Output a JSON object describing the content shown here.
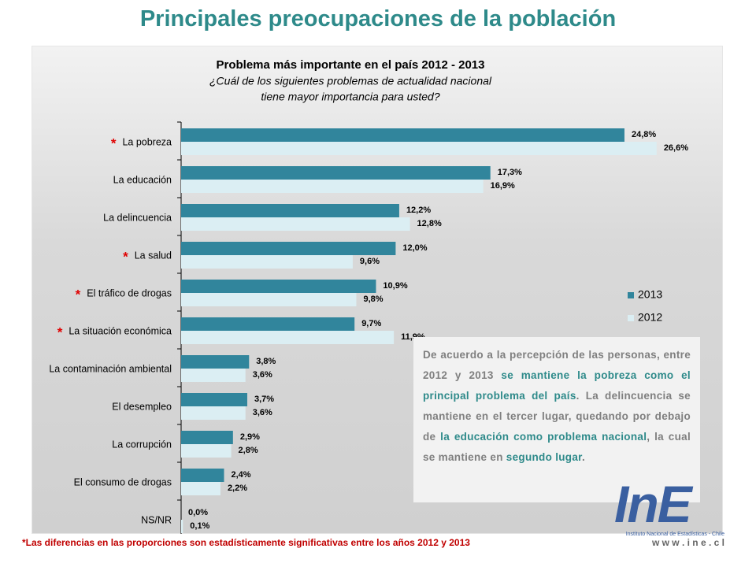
{
  "title": "Principales preocupaciones de la población",
  "chart_data": {
    "type": "bar",
    "orientation": "horizontal",
    "title": "Problema más importante en el país 2012 - 2013",
    "subtitle": [
      "¿Cuál de los siguientes problemas de actualidad nacional",
      "tiene mayor importancia para usted?"
    ],
    "categories": [
      "La pobreza",
      "La educación",
      "La delincuencia",
      "La salud",
      "El tráfico de drogas",
      "La situación económica",
      "La contaminación ambiental",
      "El desempleo",
      "La corrupción",
      "El consumo de drogas",
      "NS/NR"
    ],
    "marker": "*",
    "significant": [
      true,
      false,
      false,
      true,
      true,
      true,
      false,
      false,
      false,
      false,
      false
    ],
    "xlim": [
      0,
      30
    ],
    "legend": "right",
    "series": [
      {
        "name": "2013",
        "color": "#31859c",
        "values": [
          24.8,
          17.3,
          12.2,
          12.0,
          10.9,
          9.7,
          3.8,
          3.7,
          2.9,
          2.4,
          0.0
        ],
        "value_labels": [
          "24,8%",
          "17,3%",
          "12,2%",
          "12,0%",
          "10,9%",
          "9,7%",
          "3,8%",
          "3,7%",
          "2,9%",
          "2,4%",
          "0,0%"
        ]
      },
      {
        "name": "2012",
        "color": "#dbeef3",
        "values": [
          26.6,
          16.9,
          12.8,
          9.6,
          9.8,
          11.9,
          3.6,
          3.6,
          2.8,
          2.2,
          0.1
        ],
        "value_labels": [
          "26,6%",
          "16,9%",
          "12,8%",
          "9,6%",
          "9,8%",
          "11,9%",
          "3,6%",
          "3,6%",
          "2,8%",
          "2,2%",
          "0,1%"
        ]
      }
    ]
  },
  "note": [
    {
      "text": "De acuerdo a la percepción de las personas, entre 2012 y 2013 ",
      "emphasis": false
    },
    {
      "text": "se mantiene la pobreza como el principal problema del país",
      "emphasis": true
    },
    {
      "text": ". La delincuencia se mantiene en el tercer lugar, quedando por debajo de ",
      "emphasis": false
    },
    {
      "text": "la educación como problema nacional",
      "emphasis": true
    },
    {
      "text": ", la cual se mantiene en ",
      "emphasis": false
    },
    {
      "text": "segundo lugar",
      "emphasis": true
    },
    {
      "text": ".",
      "emphasis": false
    }
  ],
  "footnote": "*Las diferencias en las proporciones son estadísticamente significativas entre los años 2012  y 2013",
  "logo": {
    "mark": "InE",
    "institute": "Instituto Nacional de Estadísticas - Chile",
    "url": "w w w . i n e . c l"
  }
}
